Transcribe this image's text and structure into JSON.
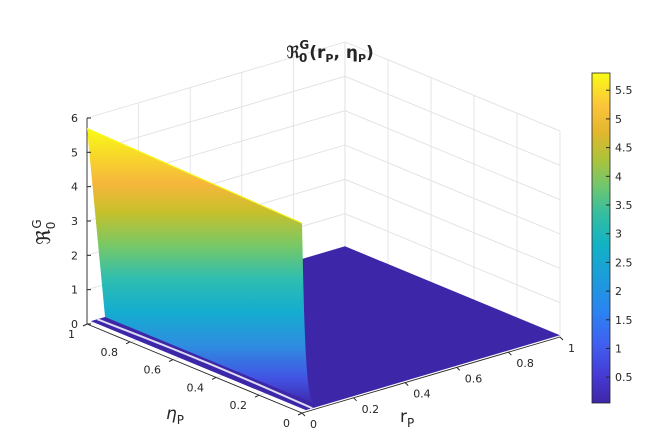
{
  "chart_data": {
    "type": "surface",
    "title_base": "ℜ",
    "title_sup": "G",
    "title_sub": "0",
    "title_args": "(r",
    "title_args_sub": "P",
    "title_args_mid": ",  η",
    "title_args_sub2": "P",
    "title_args_end": ")",
    "xlabel_base": "r",
    "xlabel_sub": "P",
    "ylabel_base": "η",
    "ylabel_sub": "P",
    "zlabel_base": "ℜ",
    "zlabel_sup": "G",
    "zlabel_sub": "0",
    "xlim": [
      0,
      1
    ],
    "ylim": [
      0,
      1
    ],
    "zlim": [
      0,
      6
    ],
    "x_ticks": [
      "0",
      "0.2",
      "0.4",
      "0.6",
      "0.8",
      "1"
    ],
    "x_tick_values": [
      0,
      0.2,
      0.4,
      0.6,
      0.8,
      1
    ],
    "y_ticks": [
      "0",
      "0.2",
      "0.4",
      "0.6",
      "0.8",
      "1"
    ],
    "y_tick_values": [
      0,
      0.2,
      0.4,
      0.6,
      0.8,
      1
    ],
    "z_ticks": [
      "0",
      "1",
      "2",
      "3",
      "4",
      "5",
      "6"
    ],
    "z_tick_values": [
      0,
      1,
      2,
      3,
      4,
      5,
      6
    ],
    "colorbar": {
      "colormap": "parula",
      "range": [
        0.05,
        5.8
      ],
      "ticks": [
        "0.5",
        "1",
        "1.5",
        "2",
        "2.5",
        "3",
        "3.5",
        "4",
        "4.5",
        "5",
        "5.5"
      ],
      "tick_values": [
        0.5,
        1,
        1.5,
        2,
        2.5,
        3,
        3.5,
        4,
        4.5,
        5,
        5.5
      ]
    },
    "surface_max": 5.7,
    "surface_min": 0.05,
    "grid": true,
    "colors": {
      "low": "#3e26a8",
      "mid": "#2fbeaf",
      "high": "#f9fb15"
    }
  }
}
